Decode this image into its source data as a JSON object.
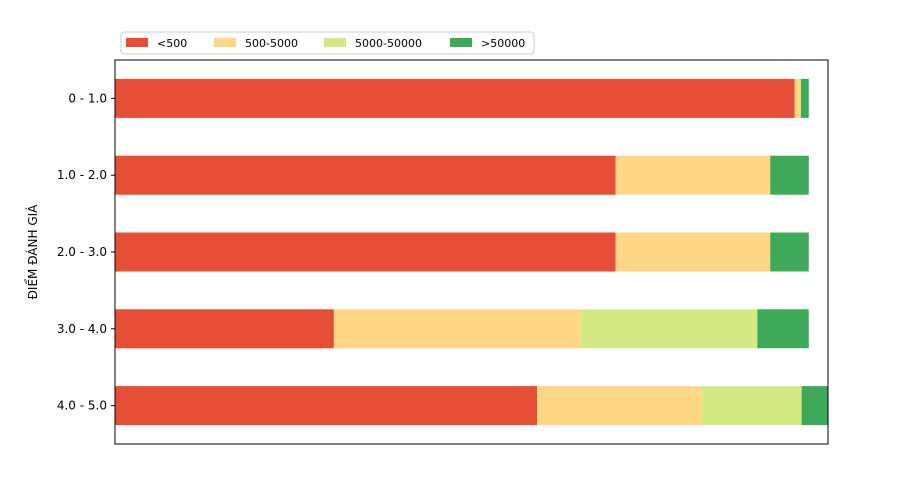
{
  "chart_data": {
    "type": "bar",
    "orientation": "horizontal",
    "stacked": true,
    "ylabel": "ĐIỂM ĐÁNH GIÁ",
    "xlabel": "",
    "categories": [
      "0 - 1.0",
      "1.0 - 2.0",
      "2.0 - 3.0",
      "3.0 - 4.0",
      "4.0 - 5.0"
    ],
    "series": [
      {
        "name": "<500",
        "color": "#e64e36",
        "values": [
          95.3,
          70.2,
          70.2,
          30.7,
          59.2
        ]
      },
      {
        "name": "500-5000",
        "color": "#fdd786",
        "values": [
          0.9,
          21.7,
          21.7,
          34.6,
          23.1
        ]
      },
      {
        "name": "5000-50000",
        "color": "#d3ea84",
        "values": [
          0.0,
          0.0,
          0.0,
          24.8,
          14.0
        ]
      },
      {
        "name": ">50000",
        "color": "#3fa95a",
        "values": [
          1.1,
          5.4,
          5.4,
          7.2,
          3.7
        ]
      }
    ],
    "xlim": [
      0,
      100
    ],
    "x_ticks_visible": false,
    "grid": false,
    "legend_position": "top-left, above plot"
  }
}
